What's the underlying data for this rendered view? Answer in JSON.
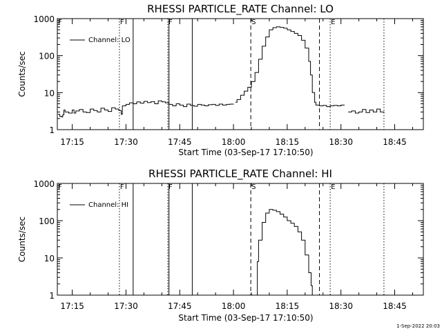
{
  "footer": {
    "timestamp": "1-Sep-2022 20:03"
  },
  "chart_data": [
    {
      "type": "line",
      "title": "RHESSI PARTICLE_RATE Channel: LO",
      "xlabel": "Start Time (03-Sep-17 17:10:50)",
      "ylabel": "Counts/sec",
      "y_scale": "log",
      "xlim": [
        "17:10:50",
        "18:53:00"
      ],
      "ylim": [
        1,
        1000
      ],
      "x_ticks": [
        "17:15",
        "17:30",
        "17:45",
        "18:00",
        "18:15",
        "18:30",
        "18:45"
      ],
      "y_ticks": [
        "1",
        "10",
        "100",
        "1000"
      ],
      "legend": {
        "position": "top-left",
        "entries": [
          "Channel: LO"
        ]
      },
      "markers": [
        {
          "label": "F",
          "time": "17:28:10",
          "style": "dotted"
        },
        {
          "label": "",
          "time": "17:32:00",
          "style": "solid"
        },
        {
          "label": "F",
          "time": "17:41:40",
          "style": "dotted"
        },
        {
          "label": "",
          "time": "17:42:00",
          "style": "solid"
        },
        {
          "label": "",
          "time": "17:48:30",
          "style": "solid"
        },
        {
          "label": "S",
          "time": "18:04:50",
          "style": "dashed"
        },
        {
          "label": "",
          "time": "18:24:00",
          "style": "dashed"
        },
        {
          "label": "E",
          "time": "18:27:00",
          "style": "dotted"
        },
        {
          "label": "",
          "time": "18:42:00",
          "style": "dotted"
        }
      ],
      "series": [
        {
          "name": "Channel: LO",
          "segments": [
            {
              "x": [
                "17:11:00",
                "17:11:30",
                "17:12:00",
                "17:12:20",
                "17:12:40",
                "17:13:00",
                "17:14:00",
                "17:15:00",
                "17:15:30",
                "17:16:00",
                "17:17:00",
                "17:18:00",
                "17:19:00",
                "17:20:00",
                "17:21:00",
                "17:22:00",
                "17:23:00",
                "17:24:00",
                "17:25:00",
                "17:26:00",
                "17:27:00",
                "17:28:00",
                "17:28:40",
                "17:29:00",
                "17:30:00",
                "17:31:00",
                "17:32:00",
                "17:33:00",
                "17:34:00",
                "17:35:00",
                "17:36:00",
                "17:37:00",
                "17:38:00",
                "17:39:00",
                "17:40:00",
                "17:41:00",
                "17:42:00",
                "17:43:00",
                "17:44:00",
                "17:45:00",
                "17:46:00",
                "17:47:00",
                "17:48:00",
                "17:49:00",
                "17:50:00",
                "17:51:00",
                "17:52:00",
                "17:53:00",
                "17:54:00",
                "17:55:00",
                "17:56:00",
                "17:57:00",
                "17:58:00",
                "17:59:00",
                "18:00:00"
              ],
              "y": [
                2.6,
                2.3,
                2.2,
                2.5,
                3.4,
                3.0,
                2.8,
                3.4,
                2.8,
                3.2,
                3.5,
                3.0,
                2.9,
                3.6,
                3.3,
                3.0,
                3.8,
                3.4,
                3.1,
                3.9,
                3.6,
                3.3,
                2.6,
                4.4,
                4.8,
                5.3,
                5.0,
                5.6,
                5.2,
                5.8,
                5.4,
                5.7,
                5.0,
                6.0,
                5.6,
                5.3,
                4.8,
                4.4,
                5.0,
                4.6,
                4.2,
                4.9,
                4.5,
                4.3,
                4.8,
                4.6,
                4.4,
                4.7,
                4.8,
                4.5,
                4.9,
                4.6,
                4.8,
                4.9,
                5.0
              ]
            },
            {
              "x": [
                "18:00:30",
                "18:01:00",
                "18:02:00",
                "18:03:00",
                "18:04:00",
                "18:05:00",
                "18:06:00",
                "18:07:00",
                "18:08:00",
                "18:09:00",
                "18:10:00",
                "18:11:00",
                "18:12:00",
                "18:13:00",
                "18:14:00",
                "18:15:00",
                "18:16:00",
                "18:17:00",
                "18:18:00",
                "18:19:00",
                "18:20:00",
                "18:21:00",
                "18:21:30",
                "18:22:00",
                "18:22:40",
                "18:23:00",
                "18:24:00",
                "18:25:00",
                "18:26:00",
                "18:27:00",
                "18:28:00",
                "18:29:00",
                "18:30:00",
                "18:31:00"
              ],
              "y": [
                5.5,
                6.5,
                8.5,
                11,
                14,
                20,
                35,
                80,
                180,
                320,
                500,
                570,
                600,
                580,
                550,
                500,
                450,
                400,
                350,
                260,
                160,
                70,
                30,
                10,
                5.5,
                4.6,
                4.4,
                4.5,
                4.2,
                4.4,
                4.5,
                4.4,
                4.6,
                4.6
              ]
            },
            {
              "x": [
                "18:32:00",
                "18:33:00",
                "18:34:00",
                "18:35:00",
                "18:36:00",
                "18:37:00",
                "18:38:00",
                "18:39:00",
                "18:40:00",
                "18:41:00",
                "18:42:00"
              ],
              "y": [
                3.0,
                3.2,
                2.8,
                3.0,
                3.5,
                2.9,
                3.4,
                3.0,
                3.6,
                3.0,
                2.9
              ]
            }
          ]
        }
      ]
    },
    {
      "type": "line",
      "title": "RHESSI PARTICLE_RATE Channel: HI",
      "xlabel": "Start Time (03-Sep-17 17:10:50)",
      "ylabel": "Counts/sec",
      "y_scale": "log",
      "xlim": [
        "17:10:50",
        "18:53:00"
      ],
      "ylim": [
        1,
        1000
      ],
      "x_ticks": [
        "17:15",
        "17:30",
        "17:45",
        "18:00",
        "18:15",
        "18:30",
        "18:45"
      ],
      "y_ticks": [
        "1",
        "10",
        "100",
        "1000"
      ],
      "legend": {
        "position": "top-left",
        "entries": [
          "Channel: HI"
        ]
      },
      "markers": [
        {
          "label": "F",
          "time": "17:28:10",
          "style": "dotted"
        },
        {
          "label": "",
          "time": "17:32:00",
          "style": "solid"
        },
        {
          "label": "F",
          "time": "17:41:40",
          "style": "dotted"
        },
        {
          "label": "",
          "time": "17:42:00",
          "style": "solid"
        },
        {
          "label": "",
          "time": "17:48:30",
          "style": "solid"
        },
        {
          "label": "S",
          "time": "18:04:50",
          "style": "dashed"
        },
        {
          "label": "",
          "time": "18:24:00",
          "style": "dashed"
        },
        {
          "label": "E",
          "time": "18:27:00",
          "style": "dotted"
        },
        {
          "label": "",
          "time": "18:42:00",
          "style": "dotted"
        }
      ],
      "series": [
        {
          "name": "Channel: HI",
          "segments": [
            {
              "x": [
                "18:06:10",
                "18:06:40",
                "18:07:00",
                "18:08:00",
                "18:09:00",
                "18:10:00",
                "18:11:00",
                "18:12:00",
                "18:13:00",
                "18:14:00",
                "18:15:00",
                "18:16:00",
                "18:17:00",
                "18:18:00",
                "18:19:00",
                "18:20:00",
                "18:21:00",
                "18:21:40",
                "18:22:00"
              ],
              "y": [
                1.0,
                8,
                30,
                90,
                160,
                200,
                190,
                175,
                150,
                125,
                100,
                85,
                70,
                50,
                30,
                12,
                4,
                1.8,
                1.0
              ]
            }
          ]
        }
      ]
    }
  ]
}
